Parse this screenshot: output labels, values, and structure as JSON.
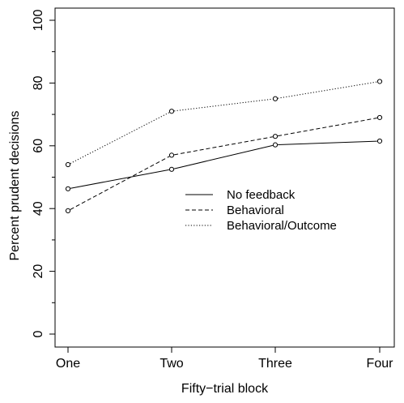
{
  "chart_data": {
    "type": "line",
    "xlabel": "Fifty−trial block",
    "ylabel": "Percent prudent decisions",
    "categories": [
      "One",
      "Two",
      "Three",
      "Four"
    ],
    "ylim": [
      0,
      100
    ],
    "yticks": [
      0,
      20,
      40,
      60,
      80,
      100
    ],
    "legend_position": "center",
    "grid": false,
    "series": [
      {
        "name": "No feedback",
        "line_style": "solid",
        "values": [
          46.3,
          52.5,
          60.3,
          61.5
        ]
      },
      {
        "name": "Behavioral",
        "line_style": "dashed",
        "values": [
          39.3,
          57.0,
          63.0,
          69.0
        ]
      },
      {
        "name": "Behavioral/Outcome",
        "line_style": "dotted",
        "values": [
          54.0,
          71.0,
          75.0,
          80.5
        ]
      }
    ]
  }
}
